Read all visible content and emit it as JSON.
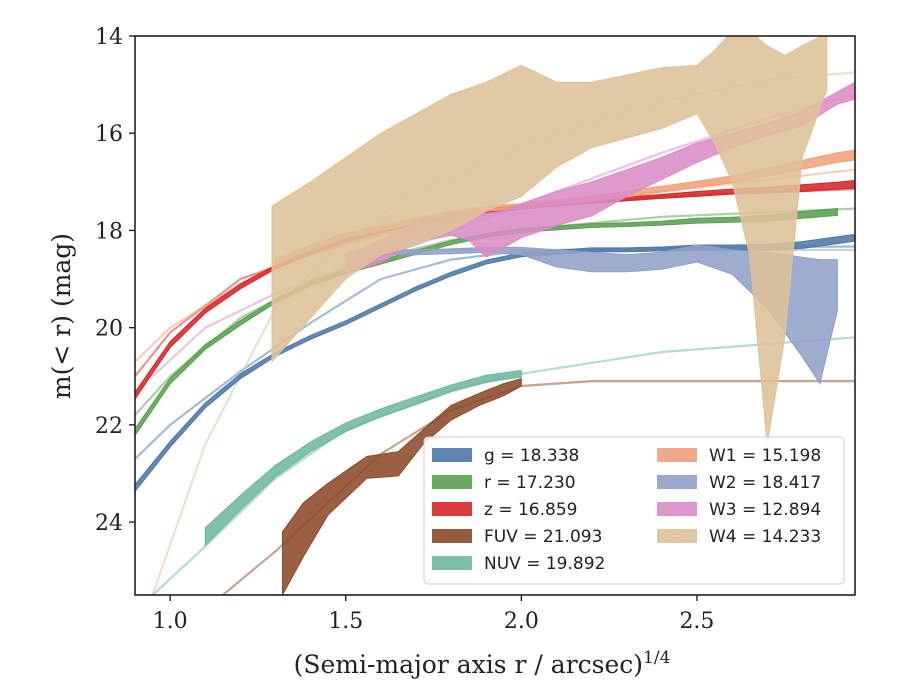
{
  "chart_data": {
    "type": "area",
    "xlabel": "(Semi-major axis r / arcsec)",
    "xlabel_exponent": "1/4",
    "ylabel": "m(< r) (mag)",
    "xlim": [
      0.9,
      2.95
    ],
    "ylim": [
      25.5,
      14
    ],
    "y_inverted": true,
    "xticks": [
      1.0,
      1.5,
      2.0,
      2.5
    ],
    "xtick_labels": [
      "1.0",
      "1.5",
      "2.0",
      "2.5"
    ],
    "yticks": [
      14,
      16,
      18,
      20,
      22,
      24
    ],
    "ytick_labels": [
      "14",
      "16",
      "18",
      "20",
      "22",
      "24"
    ],
    "grid": false,
    "legend_position": "lower-right",
    "series": [
      {
        "name": "g",
        "legend": "g = 18.338",
        "color": "#4C78A8",
        "band_x": [
          0.9,
          1.0,
          1.1,
          1.2,
          1.3,
          1.4,
          1.5,
          1.6,
          1.7,
          1.8,
          1.9,
          2.0,
          2.1,
          2.2,
          2.3,
          2.4,
          2.5,
          2.6,
          2.7,
          2.8,
          2.9,
          2.95
        ],
        "band_mid": [
          23.3,
          22.4,
          21.6,
          21.0,
          20.55,
          20.2,
          19.9,
          19.55,
          19.2,
          18.9,
          18.65,
          18.5,
          18.45,
          18.4,
          18.4,
          18.38,
          18.35,
          18.35,
          18.35,
          18.3,
          18.2,
          18.15
        ],
        "band_half": [
          0.07,
          0.06,
          0.05,
          0.05,
          0.04,
          0.04,
          0.04,
          0.04,
          0.04,
          0.04,
          0.04,
          0.04,
          0.04,
          0.04,
          0.04,
          0.04,
          0.05,
          0.05,
          0.06,
          0.07,
          0.07,
          0.07
        ],
        "model_x": [
          0.9,
          1.0,
          1.2,
          1.4,
          1.6,
          1.8,
          2.0,
          2.4,
          2.95
        ],
        "model_y": [
          22.7,
          22.0,
          20.9,
          19.9,
          19.0,
          18.6,
          18.42,
          18.36,
          18.33
        ]
      },
      {
        "name": "r",
        "legend": "r = 17.230",
        "color": "#59A14F",
        "band_x": [
          0.9,
          1.0,
          1.1,
          1.2,
          1.3,
          1.4,
          1.5,
          1.6,
          1.7,
          1.8,
          1.9,
          2.0,
          2.1,
          2.2,
          2.3,
          2.4,
          2.5,
          2.6,
          2.7,
          2.8,
          2.9
        ],
        "band_mid": [
          22.15,
          21.1,
          20.4,
          19.9,
          19.45,
          19.1,
          18.85,
          18.65,
          18.45,
          18.25,
          18.1,
          18.0,
          17.95,
          17.9,
          17.88,
          17.85,
          17.8,
          17.78,
          17.75,
          17.68,
          17.62
        ],
        "band_half": [
          0.07,
          0.06,
          0.05,
          0.05,
          0.04,
          0.04,
          0.04,
          0.04,
          0.04,
          0.04,
          0.04,
          0.04,
          0.04,
          0.04,
          0.04,
          0.04,
          0.05,
          0.05,
          0.06,
          0.07,
          0.07
        ],
        "model_x": [
          0.9,
          1.0,
          1.2,
          1.4,
          1.6,
          1.8,
          2.0,
          2.4,
          2.95
        ],
        "model_y": [
          21.8,
          21.0,
          19.8,
          19.05,
          18.55,
          18.2,
          17.98,
          17.72,
          17.55
        ]
      },
      {
        "name": "z",
        "legend": "z = 16.859",
        "color": "#D62728",
        "band_x": [
          0.9,
          1.0,
          1.1,
          1.2,
          1.3,
          1.4,
          1.5,
          1.6,
          1.7,
          1.8,
          1.9,
          2.0,
          2.1,
          2.2,
          2.3,
          2.4,
          2.5,
          2.6,
          2.7,
          2.8,
          2.9,
          2.95
        ],
        "band_mid": [
          21.4,
          20.35,
          19.65,
          19.15,
          18.75,
          18.45,
          18.2,
          18.0,
          17.85,
          17.72,
          17.6,
          17.52,
          17.45,
          17.4,
          17.35,
          17.3,
          17.25,
          17.2,
          17.17,
          17.13,
          17.08,
          17.05
        ],
        "band_half": [
          0.07,
          0.06,
          0.05,
          0.05,
          0.04,
          0.04,
          0.04,
          0.04,
          0.04,
          0.04,
          0.04,
          0.04,
          0.04,
          0.04,
          0.04,
          0.04,
          0.05,
          0.05,
          0.06,
          0.07,
          0.07,
          0.08
        ],
        "model_x": [
          0.9,
          1.0,
          1.2,
          1.4,
          1.6,
          1.8,
          2.0,
          2.4,
          2.95
        ],
        "model_y": [
          21.0,
          20.1,
          19.0,
          18.5,
          18.05,
          17.75,
          17.55,
          17.3,
          17.15
        ]
      },
      {
        "name": "FUV",
        "legend": "FUV = 21.093",
        "color": "#8C4A2A",
        "band_x": [
          1.32,
          1.38,
          1.45,
          1.56,
          1.65,
          1.72,
          1.8,
          1.88,
          1.95,
          2.0
        ],
        "band_lo": [
          24.2,
          23.6,
          23.2,
          22.65,
          22.55,
          22.1,
          21.6,
          21.35,
          21.15,
          21.05
        ],
        "band_hi": [
          25.5,
          24.7,
          23.85,
          23.1,
          23.05,
          22.4,
          21.9,
          21.6,
          21.4,
          21.2
        ],
        "model_x": [
          1.15,
          1.3,
          1.45,
          1.6,
          1.8,
          2.0,
          2.2,
          2.95
        ],
        "model_y": [
          25.5,
          24.6,
          23.6,
          22.6,
          21.7,
          21.2,
          21.1,
          21.1
        ]
      },
      {
        "name": "NUV",
        "legend": "NUV = 19.892",
        "color": "#6FB8A0",
        "band_x": [
          1.1,
          1.2,
          1.3,
          1.4,
          1.5,
          1.6,
          1.7,
          1.8,
          1.9,
          2.0
        ],
        "band_mid": [
          24.3,
          23.6,
          22.95,
          22.45,
          22.05,
          21.75,
          21.5,
          21.25,
          21.05,
          20.95
        ],
        "band_half": [
          0.18,
          0.15,
          0.12,
          0.1,
          0.09,
          0.08,
          0.08,
          0.07,
          0.07,
          0.07
        ],
        "model_x": [
          0.95,
          1.1,
          1.3,
          1.5,
          1.8,
          2.0,
          2.4,
          2.95
        ],
        "model_y": [
          25.5,
          24.5,
          23.1,
          22.1,
          21.3,
          20.95,
          20.5,
          20.2
        ]
      },
      {
        "name": "W1",
        "legend": "W1 = 15.198",
        "color": "#F0A07A",
        "band_x": [
          1.3,
          1.4,
          1.5,
          1.6,
          1.7,
          1.8,
          1.9,
          2.0,
          2.1,
          2.2,
          2.3,
          2.4,
          2.5,
          2.6,
          2.7,
          2.8,
          2.9,
          2.95
        ],
        "band_mid": [
          18.65,
          18.35,
          18.1,
          17.95,
          17.8,
          17.65,
          17.55,
          17.5,
          17.42,
          17.35,
          17.25,
          17.15,
          17.05,
          16.95,
          16.8,
          16.65,
          16.5,
          16.45
        ],
        "band_half": [
          0.05,
          0.05,
          0.05,
          0.05,
          0.05,
          0.05,
          0.05,
          0.05,
          0.05,
          0.05,
          0.06,
          0.06,
          0.06,
          0.07,
          0.08,
          0.09,
          0.1,
          0.1
        ],
        "model_x": [
          0.9,
          1.0,
          1.2,
          1.4,
          1.6,
          1.8,
          2.0,
          2.4,
          2.95
        ],
        "model_y": [
          20.7,
          20.0,
          19.1,
          18.5,
          18.1,
          17.8,
          17.55,
          17.2,
          16.75
        ]
      },
      {
        "name": "W2",
        "legend": "W2 = 18.417",
        "color": "#8FA0C8",
        "band_x": [
          1.6,
          1.7,
          1.8,
          1.9,
          2.0,
          2.1,
          2.2,
          2.3,
          2.4,
          2.5,
          2.6,
          2.7,
          2.8,
          2.85,
          2.9
        ],
        "band_lo": [
          18.4,
          18.4,
          18.38,
          18.35,
          18.35,
          18.4,
          18.45,
          18.5,
          18.45,
          18.3,
          18.4,
          18.45,
          18.55,
          18.6,
          18.6
        ],
        "band_hi": [
          18.5,
          18.5,
          18.48,
          18.45,
          18.5,
          18.75,
          18.85,
          18.85,
          18.8,
          18.65,
          18.9,
          19.6,
          20.6,
          21.15,
          19.65
        ],
        "model_x": [
          1.5,
          1.6,
          1.8,
          2.0,
          2.4,
          2.95
        ],
        "model_y": [
          18.45,
          18.42,
          18.4,
          18.4,
          18.4,
          18.4
        ]
      },
      {
        "name": "W3",
        "legend": "W3 = 12.894",
        "color": "#D98CC6",
        "band_x": [
          1.5,
          1.6,
          1.7,
          1.8,
          1.85,
          1.9,
          1.95,
          2.0,
          2.1,
          2.2,
          2.3,
          2.4,
          2.5,
          2.6,
          2.7,
          2.8,
          2.9,
          2.95
        ],
        "band_lo": [
          18.5,
          18.2,
          17.85,
          17.65,
          17.6,
          17.65,
          17.6,
          17.45,
          17.2,
          17.0,
          16.75,
          16.5,
          16.2,
          16.0,
          15.8,
          15.55,
          15.15,
          14.95
        ],
        "band_hi": [
          18.9,
          18.65,
          18.25,
          18.1,
          18.2,
          18.55,
          18.35,
          18.15,
          17.9,
          17.7,
          17.3,
          16.95,
          16.6,
          16.3,
          16.05,
          15.85,
          15.4,
          15.3
        ],
        "model_x": [
          0.95,
          1.1,
          1.3,
          1.5,
          1.7,
          1.9,
          2.1,
          2.4,
          2.7,
          2.95
        ],
        "model_y": [
          21.0,
          20.0,
          19.3,
          18.75,
          18.3,
          17.75,
          17.2,
          16.4,
          15.7,
          15.2
        ]
      },
      {
        "name": "W4",
        "legend": "W4 = 14.233",
        "color": "#DEC29A",
        "band_x": [
          1.29,
          1.4,
          1.5,
          1.6,
          1.7,
          1.8,
          1.9,
          2.0,
          2.1,
          2.2,
          2.3,
          2.4,
          2.5,
          2.55,
          2.6,
          2.65,
          2.7,
          2.75,
          2.8,
          2.87
        ],
        "band_lo": [
          17.5,
          17.0,
          16.5,
          16.0,
          15.6,
          15.2,
          14.95,
          14.6,
          14.95,
          14.95,
          14.8,
          14.65,
          14.6,
          14.3,
          13.9,
          13.9,
          14.2,
          14.4,
          14.2,
          13.95
        ],
        "band_hi": [
          20.7,
          19.8,
          19.0,
          18.5,
          18.3,
          18.0,
          17.6,
          17.3,
          16.7,
          16.3,
          16.1,
          15.9,
          15.6,
          16.2,
          17.0,
          18.5,
          22.4,
          20.2,
          16.5,
          15.1
        ],
        "model_x": [
          0.95,
          1.1,
          1.3,
          1.5,
          1.7,
          1.9,
          2.1,
          2.4,
          2.7,
          2.95
        ],
        "model_y": [
          25.5,
          22.4,
          19.6,
          18.2,
          17.2,
          16.6,
          16.0,
          15.35,
          14.9,
          14.75
        ]
      }
    ],
    "legend_columns": [
      [
        "g",
        "r",
        "z",
        "FUV",
        "NUV"
      ],
      [
        "W1",
        "W2",
        "W3",
        "W4"
      ]
    ]
  }
}
